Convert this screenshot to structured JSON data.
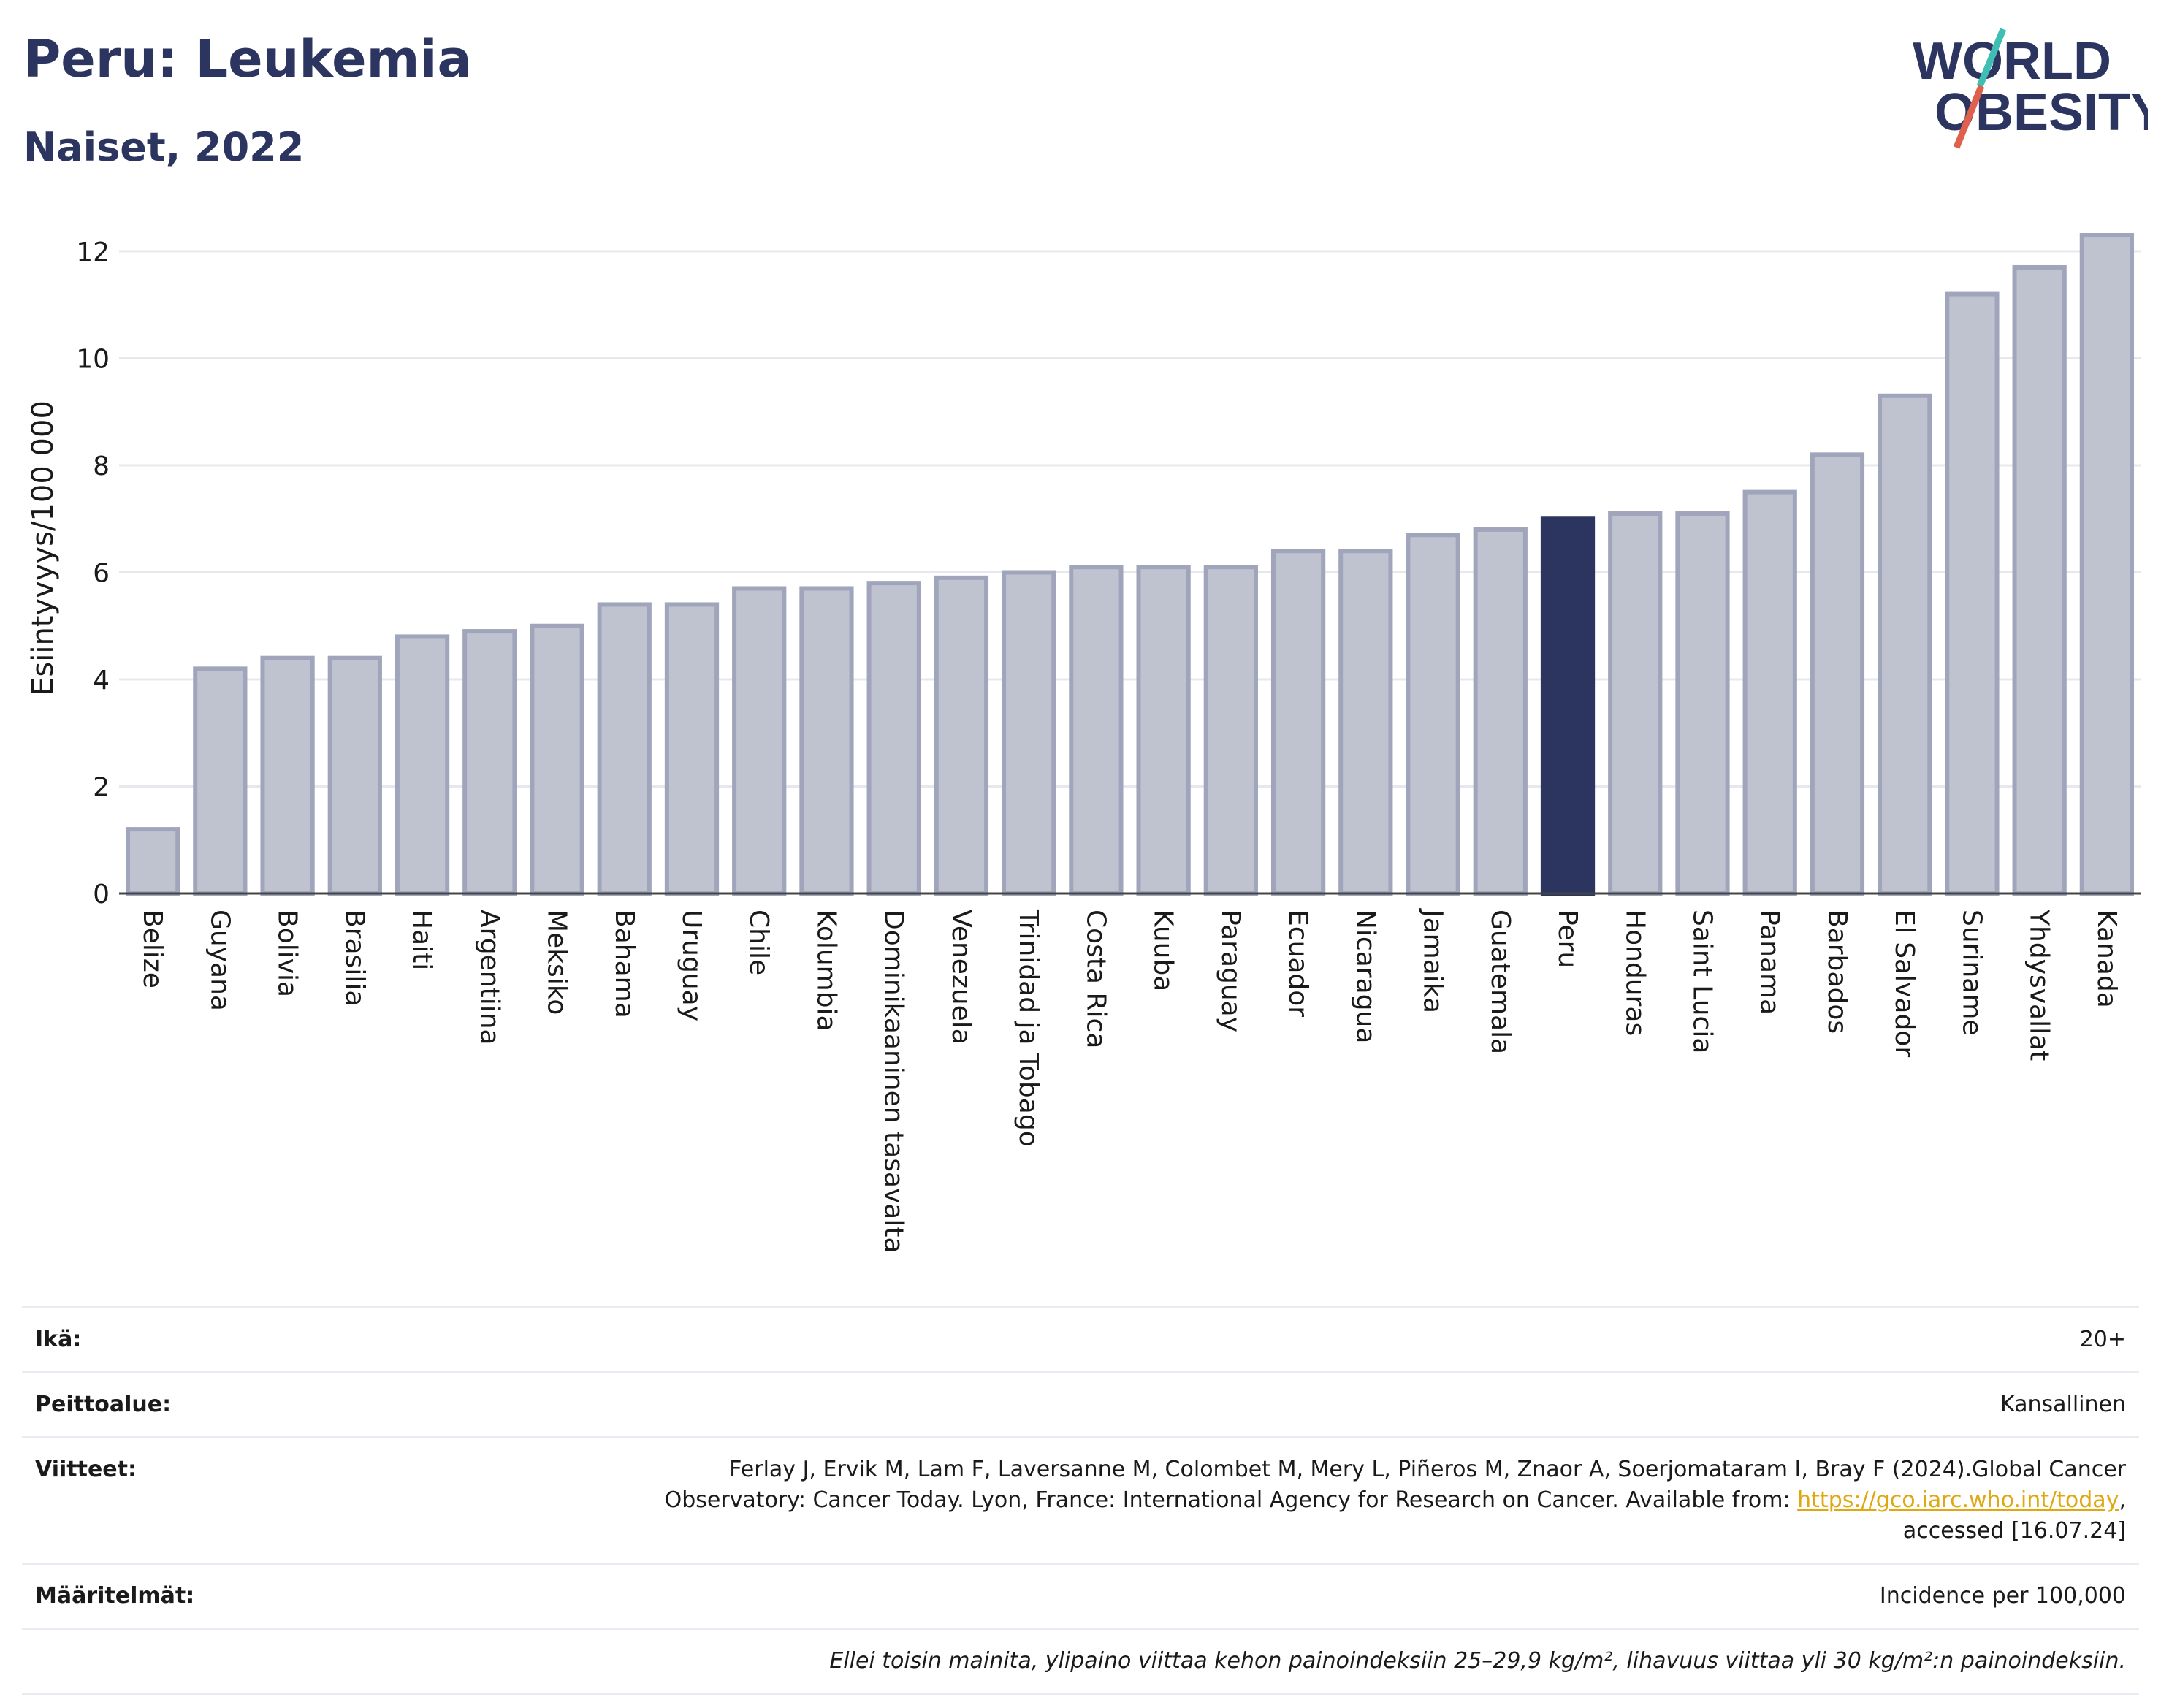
{
  "header": {
    "title": "Peru: Leukemia",
    "subtitle": "Naiset, 2022"
  },
  "logo": {
    "line1": "WORLD",
    "line2": "OBESITY",
    "colors": {
      "text": "#2c3560",
      "slash_teal": "#3fbfb4",
      "slash_red": "#e0604e"
    }
  },
  "chart_data": {
    "type": "bar",
    "ylabel": "Esiintyvyys/100 000",
    "xlabel": "",
    "ylim": [
      0,
      12.6
    ],
    "yticks": [
      0,
      2,
      4,
      6,
      8,
      10,
      12
    ],
    "grid": true,
    "highlight": "Peru",
    "colors": {
      "bar": "#bfc3d0",
      "bar_border": "#a0a5bb",
      "highlight": "#2c3560"
    },
    "categories": [
      "Belize",
      "Guyana",
      "Bolivia",
      "Brasilia",
      "Haiti",
      "Argentiina",
      "Meksiko",
      "Bahama",
      "Uruguay",
      "Chile",
      "Kolumbia",
      "Dominikaaninen tasavalta",
      "Venezuela",
      "Trinidad ja Tobago",
      "Costa Rica",
      "Kuuba",
      "Paraguay",
      "Ecuador",
      "Nicaragua",
      "Jamaika",
      "Guatemala",
      "Peru",
      "Honduras",
      "Saint Lucia",
      "Panama",
      "Barbados",
      "El Salvador",
      "Suriname",
      "Yhdysvallat",
      "Kanada"
    ],
    "values": [
      1.2,
      4.2,
      4.4,
      4.4,
      4.8,
      4.9,
      5.0,
      5.4,
      5.4,
      5.7,
      5.7,
      5.8,
      5.9,
      6.0,
      6.1,
      6.1,
      6.1,
      6.4,
      6.4,
      6.7,
      6.8,
      7.0,
      7.1,
      7.1,
      7.5,
      8.2,
      9.3,
      11.2,
      11.7,
      12.3
    ]
  },
  "info": {
    "age_label": "Ikä:",
    "age_value": "20+",
    "coverage_label": "Peittoalue:",
    "coverage_value": "Kansallinen",
    "refs_label": "Viitteet:",
    "refs_text_1": "Ferlay J, Ervik M, Lam F, Laversanne M, Colombet M, Mery L, Piñeros M, Znaor A, Soerjomataram I, Bray F (2024).Global Cancer",
    "refs_text_2": "Observatory: Cancer Today. Lyon, France: International Agency for Research on Cancer. Available from: ",
    "refs_link": "https://gco.iarc.who.int/today",
    "refs_text_3": ",",
    "refs_text_4": "accessed [16.07.24]",
    "definitions_label": "Määritelmät:",
    "definitions_value": "Incidence per 100,000",
    "footnote": "Ellei toisin mainita, ylipaino viittaa kehon painoindeksiin 25–29,9 kg/m², lihavuus viittaa yli 30 kg/m²:n painoindeksiin."
  }
}
